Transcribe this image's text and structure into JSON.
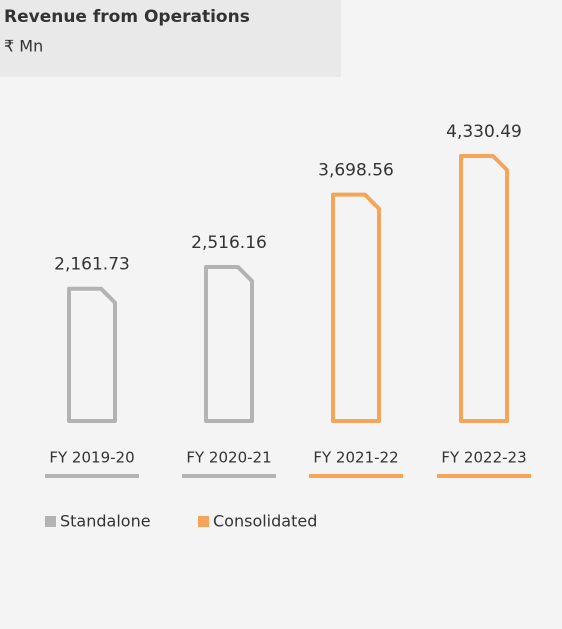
{
  "chart_data": {
    "type": "bar",
    "title": "Revenue from Operations",
    "subtitle": "₹ Mn",
    "categories": [
      "FY 2019-20",
      "FY 2020-21",
      "FY 2021-22",
      "FY 2022-23"
    ],
    "series": [
      {
        "name": "Standalone",
        "color": "#b3b3b3",
        "values": [
          2161.73,
          2516.16,
          null,
          null
        ],
        "value_labels": [
          "2,161.73",
          "2,516.16",
          null,
          null
        ]
      },
      {
        "name": "Consolidated",
        "color": "#f5a55a",
        "values": [
          null,
          null,
          3698.56,
          4330.49
        ],
        "value_labels": [
          null,
          null,
          "3,698.56",
          "4,330.49"
        ]
      }
    ]
  }
}
